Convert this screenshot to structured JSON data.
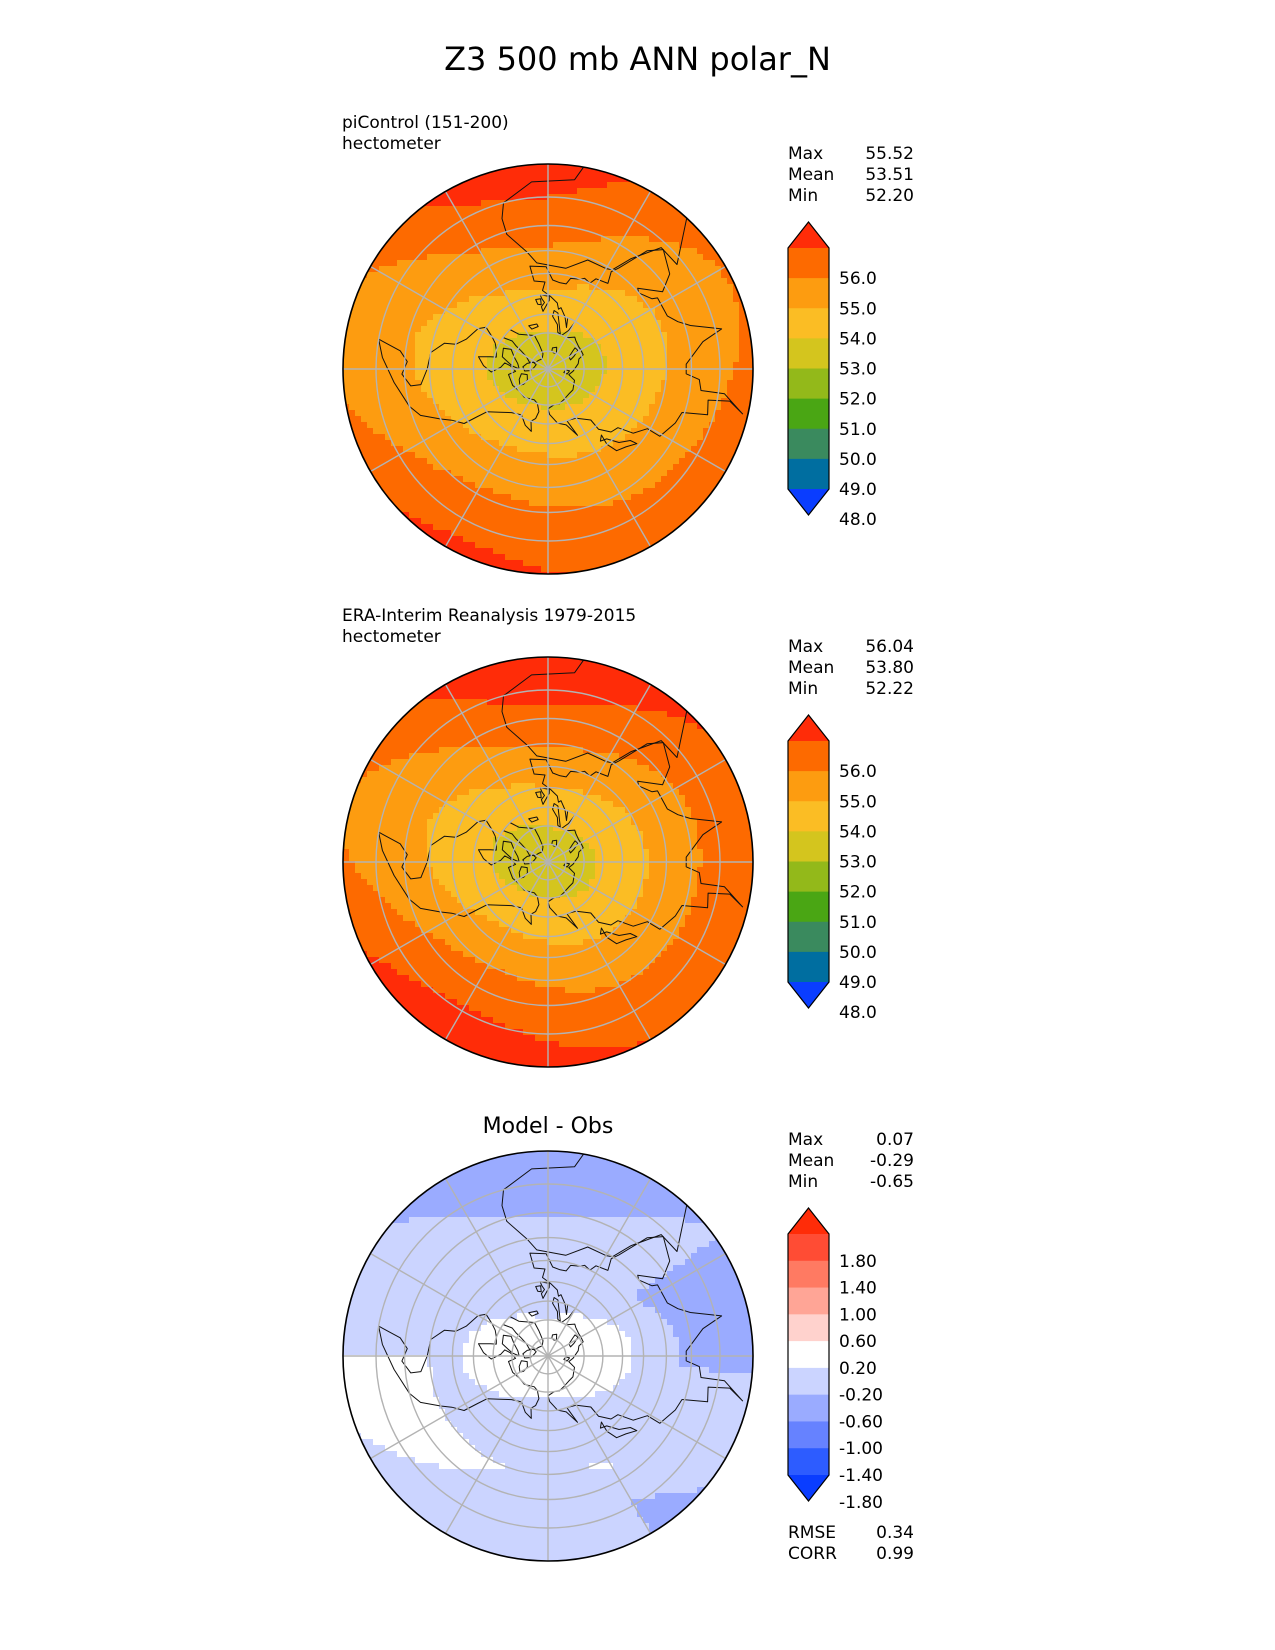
{
  "title": "Z3 500 mb ANN polar_N",
  "colors": {
    "main": [
      "#0a3dff",
      "#006ea0",
      "#3a8a5e",
      "#4aa614",
      "#93b91a",
      "#d4c51e",
      "#fbbd24",
      "#fd9c10",
      "#fd6a00",
      "#ff2c08"
    ],
    "diff": [
      "#0a3dff",
      "#2d5cff",
      "#6682ff",
      "#9aabff",
      "#cbd4ff",
      "#ffffff",
      "#ffd2cd",
      "#ffa596",
      "#ff7a62",
      "#ff4c34",
      "#ff2c08"
    ],
    "land": "#111111",
    "grid": "#b3b3b3"
  },
  "panels": [
    {
      "id": "model",
      "caption": [
        "piControl (151-200)",
        "hectometer"
      ],
      "subtitle": "",
      "stats": [
        {
          "label": "Max",
          "value": "55.52"
        },
        {
          "label": "Mean",
          "value": "53.51"
        },
        {
          "label": "Min",
          "value": "52.20"
        }
      ],
      "colorbar": {
        "palette": "main",
        "ticks": [
          "56.0",
          "55.0",
          "54.0",
          "53.0",
          "52.0",
          "51.0",
          "50.0",
          "49.0",
          "48.0"
        ]
      },
      "field": {
        "pole_level": 52.3,
        "equator_level": 55.6
      }
    },
    {
      "id": "obs",
      "caption": [
        "ERA-Interim Reanalysis 1979-2015",
        "hectometer"
      ],
      "subtitle": "",
      "stats": [
        {
          "label": "Max",
          "value": "56.04"
        },
        {
          "label": "Mean",
          "value": "53.80"
        },
        {
          "label": "Min",
          "value": "52.22"
        }
      ],
      "colorbar": {
        "palette": "main",
        "ticks": [
          "56.0",
          "55.0",
          "54.0",
          "53.0",
          "52.0",
          "51.0",
          "50.0",
          "49.0",
          "48.0"
        ]
      },
      "field": {
        "pole_level": 52.3,
        "equator_level": 56.0
      }
    },
    {
      "id": "diff",
      "caption": [],
      "subtitle": "Model - Obs",
      "stats": [
        {
          "label": "Max",
          "value": "0.07"
        },
        {
          "label": "Mean",
          "value": "-0.29"
        },
        {
          "label": "Min",
          "value": "-0.65"
        }
      ],
      "extra_stats": [
        {
          "label": "RMSE",
          "value": "0.34"
        },
        {
          "label": "CORR",
          "value": "0.99"
        }
      ],
      "colorbar": {
        "palette": "diff",
        "ticks": [
          "1.80",
          "1.40",
          "1.00",
          "0.60",
          "0.20",
          "-0.20",
          "-0.60",
          "-1.00",
          "-1.40",
          "-1.80"
        ]
      }
    }
  ],
  "chart_data": [
    {
      "type": "heatmap",
      "projection": "north polar stereographic",
      "title": "piControl (151-200)",
      "units": "hectometer",
      "stats": {
        "max": 55.52,
        "mean": 53.51,
        "min": 52.2
      },
      "contour_levels": [
        48,
        49,
        50,
        51,
        52,
        53,
        54,
        55,
        56
      ]
    },
    {
      "type": "heatmap",
      "projection": "north polar stereographic",
      "title": "ERA-Interim Reanalysis 1979-2015",
      "units": "hectometer",
      "stats": {
        "max": 56.04,
        "mean": 53.8,
        "min": 52.22
      },
      "contour_levels": [
        48,
        49,
        50,
        51,
        52,
        53,
        54,
        55,
        56
      ]
    },
    {
      "type": "heatmap",
      "projection": "north polar stereographic",
      "title": "Model - Obs",
      "stats": {
        "max": 0.07,
        "mean": -0.29,
        "min": -0.65,
        "rmse": 0.34,
        "corr": 0.99
      },
      "contour_levels": [
        -1.8,
        -1.4,
        -1.0,
        -0.6,
        -0.2,
        0.2,
        0.6,
        1.0,
        1.4,
        1.8
      ]
    }
  ]
}
